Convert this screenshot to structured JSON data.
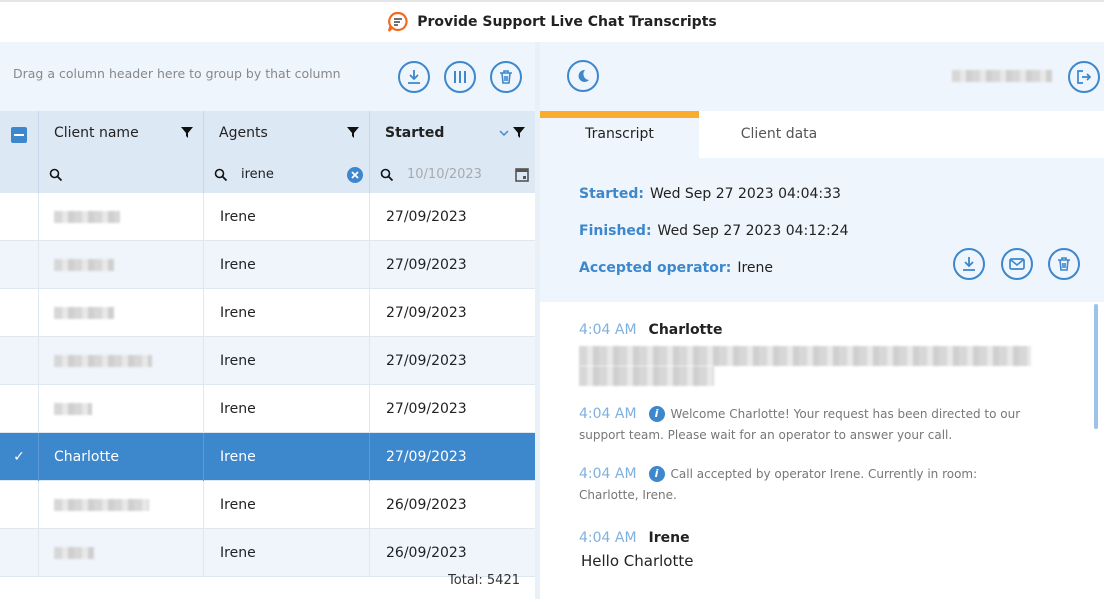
{
  "app": {
    "title": "Provide Support Live Chat Transcripts",
    "logo_icon": "chat-bubble-logo",
    "accent": "#3d87cc",
    "tab_accent": "#fbac2f"
  },
  "grid": {
    "group_hint": "Drag a column header here to group by that column",
    "toolbar_icons": [
      "download-icon",
      "columns-icon",
      "trash-icon"
    ],
    "columns": [
      {
        "label": "Client name",
        "filter": ""
      },
      {
        "label": "Agents",
        "filter": "irene"
      },
      {
        "label": "Started",
        "filter_placeholder": "10/10/2023"
      }
    ],
    "rows": [
      {
        "client": "",
        "agent": "Irene",
        "started": "27/09/2023",
        "selected": false
      },
      {
        "client": "",
        "agent": "Irene",
        "started": "27/09/2023",
        "selected": false
      },
      {
        "client": "",
        "agent": "Irene",
        "started": "27/09/2023",
        "selected": false
      },
      {
        "client": "",
        "agent": "Irene",
        "started": "27/09/2023",
        "selected": false
      },
      {
        "client": "",
        "agent": "Irene",
        "started": "27/09/2023",
        "selected": false
      },
      {
        "client": "Charlotte",
        "agent": "Irene",
        "started": "27/09/2023",
        "selected": true
      },
      {
        "client": "",
        "agent": "Irene",
        "started": "26/09/2023",
        "selected": false
      },
      {
        "client": "",
        "agent": "Irene",
        "started": "26/09/2023",
        "selected": false
      }
    ],
    "total": "Total: 5421"
  },
  "detail": {
    "tabs": [
      {
        "label": "Transcript",
        "active": true
      },
      {
        "label": "Client data",
        "active": false
      }
    ],
    "started_label": "Started:",
    "started": "Wed Sep 27 2023 04:04:33",
    "finished_label": "Finished:",
    "finished": "Wed Sep 27 2023 04:12:24",
    "operator_label": "Accepted operator:",
    "operator": "Irene",
    "messages": [
      {
        "time": "4:04 AM",
        "author": "Charlotte",
        "text": "",
        "type": "user"
      },
      {
        "time": "4:04 AM",
        "text": "Welcome Charlotte! Your request has been directed to our support team. Please wait for an operator to answer your call.",
        "type": "system"
      },
      {
        "time": "4:04 AM",
        "text": "Call accepted by operator Irene. Currently in room: Charlotte, Irene.",
        "type": "system"
      },
      {
        "time": "4:04 AM",
        "author": "Irene",
        "text": "Hello Charlotte",
        "type": "user"
      }
    ]
  }
}
